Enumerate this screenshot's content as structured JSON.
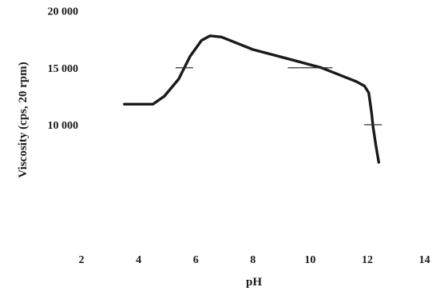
{
  "chart_data": {
    "type": "line",
    "title": "",
    "xlabel": "pH",
    "ylabel": "Viscosity (cps, 20 rpm)",
    "xlim": [
      2,
      14
    ],
    "ylim": [
      5000,
      20000
    ],
    "x_ticks": [
      2,
      4,
      6,
      8,
      10,
      12,
      14
    ],
    "x_tick_labels": [
      "2",
      "4",
      "6",
      "8",
      "10",
      "12",
      "14"
    ],
    "y_ticks": [
      10000,
      15000,
      20000
    ],
    "y_tick_labels": [
      "10 000",
      "15 000",
      "20 000"
    ],
    "grid": false,
    "legend": "none",
    "series": [
      {
        "x": [
          3.5,
          4.1,
          4.5,
          4.9,
          5.4,
          5.8,
          6.2,
          6.5,
          6.9,
          7.4,
          8.0,
          8.6,
          9.2,
          9.8,
          10.4,
          11.0,
          11.6,
          11.9,
          12.05,
          12.15,
          12.2,
          12.3,
          12.4
        ],
        "y": [
          11800,
          11800,
          11800,
          12500,
          14000,
          16000,
          17400,
          17800,
          17700,
          17200,
          16600,
          16200,
          15800,
          15400,
          15000,
          14400,
          13800,
          13400,
          12800,
          11000,
          9800,
          8200,
          6700
        ]
      }
    ],
    "markers": [
      {
        "x": 5.6,
        "y": 15000
      },
      {
        "x": 10.0,
        "y": 15000
      },
      {
        "x": 12.2,
        "y": 10000
      }
    ],
    "color": "#1a1a1a"
  }
}
